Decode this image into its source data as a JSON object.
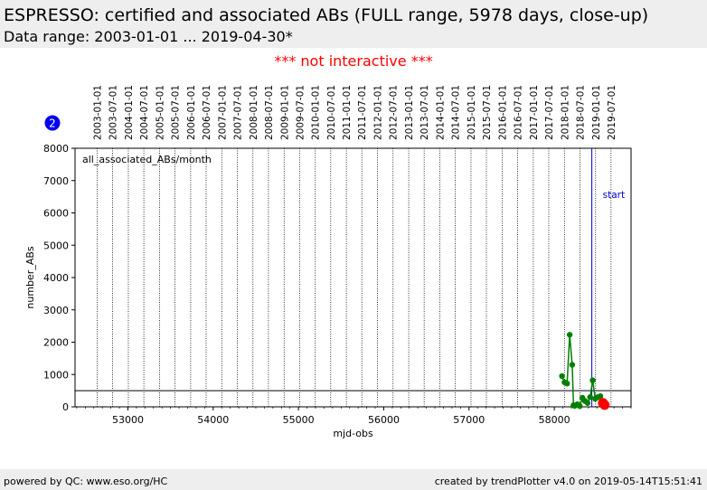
{
  "header": {
    "title": "ESPRESSO: certified and associated ABs (FULL range, 5978 days, close-up)",
    "subtitle": "Data range: 2003-01-01 ... 2019-04-30*"
  },
  "notice": "*** not interactive ***",
  "footer": {
    "left": "powered by QC: www.eso.org/HC",
    "right": "created by trendPlotter v4.0 on 2019-05-14T15:51:41"
  },
  "colors": {
    "series": "#008000",
    "highlight": "#ff0000",
    "start_line": "#0000cc",
    "badge": "#0000ee"
  },
  "chart_data": {
    "type": "line",
    "badge": "2",
    "xlabel": "mjd-obs",
    "ylabel": "number_ABs",
    "xlim": [
      52380,
      58900
    ],
    "ylim": [
      0,
      8000
    ],
    "x_ticks": [
      "53000",
      "54000",
      "55000",
      "56000",
      "57000",
      "58000"
    ],
    "x_tick_values": [
      53000,
      54000,
      55000,
      56000,
      57000,
      58000
    ],
    "y_ticks": [
      "0",
      "1000",
      "2000",
      "3000",
      "4000",
      "5000",
      "6000",
      "7000",
      "8000"
    ],
    "y_tick_values": [
      0,
      1000,
      2000,
      3000,
      4000,
      5000,
      6000,
      7000,
      8000
    ],
    "date_ticks": [
      "2003-01-01",
      "2003-07-01",
      "2004-01-01",
      "2004-07-01",
      "2005-01-01",
      "2005-07-01",
      "2006-01-01",
      "2006-07-01",
      "2007-01-01",
      "2007-07-01",
      "2008-01-01",
      "2008-07-01",
      "2009-01-01",
      "2009-07-01",
      "2010-01-01",
      "2010-07-01",
      "2011-01-01",
      "2011-07-01",
      "2012-01-01",
      "2012-07-01",
      "2013-01-01",
      "2013-07-01",
      "2014-01-01",
      "2014-07-01",
      "2015-01-01",
      "2015-07-01",
      "2016-01-01",
      "2016-07-01",
      "2017-01-01",
      "2017-07-01",
      "2018-01-01",
      "2018-07-01",
      "2019-01-01",
      "2019-07-01"
    ],
    "date_tick_mjd": [
      52640,
      52821,
      53005,
      53187,
      53371,
      53552,
      53736,
      53917,
      54101,
      54282,
      54466,
      54648,
      54832,
      55013,
      55197,
      55378,
      55562,
      55743,
      55927,
      56109,
      56293,
      56474,
      56658,
      56839,
      57023,
      57204,
      57388,
      57570,
      57754,
      57935,
      58119,
      58300,
      58484,
      58665
    ],
    "legend": "all_associated_ABs/month",
    "annotation": "start",
    "start_x": 58440,
    "reference_y": 500,
    "series": [
      {
        "x": [
          58090,
          58120,
          58150,
          58180,
          58210,
          58225,
          58240,
          58270,
          58300,
          58330,
          58360,
          58390,
          58420,
          58450,
          58480,
          58510,
          58540
        ],
        "y": [
          950,
          760,
          720,
          2230,
          1300,
          50,
          30,
          80,
          20,
          280,
          180,
          120,
          300,
          820,
          250,
          300,
          330
        ]
      }
    ],
    "highlight_x": [
      58570,
      58590
    ],
    "highlight_y": [
      120,
      60
    ]
  }
}
